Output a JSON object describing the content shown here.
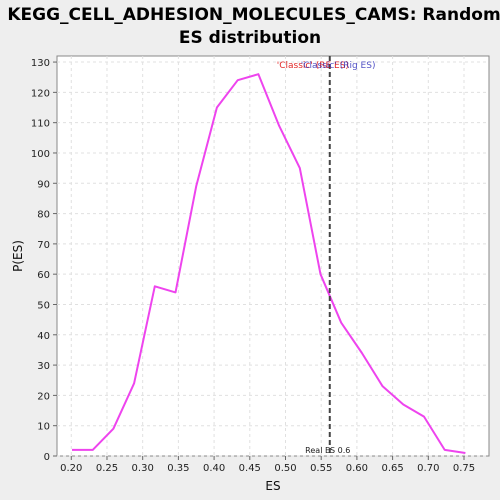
{
  "chart_data": {
    "type": "line",
    "title_line1": "KEGG_CELL_ADHESION_MOLECULES_CAMS: Random",
    "title_line2": "ES distribution",
    "xlabel": "ES",
    "ylabel": "P(ES)",
    "xlim": [
      0.18,
      0.785
    ],
    "ylim": [
      0,
      132
    ],
    "x_ticks": [
      0.2,
      0.25,
      0.3,
      0.35,
      0.4,
      0.45,
      0.5,
      0.55,
      0.6,
      0.65,
      0.7,
      0.75
    ],
    "x_tick_labels": [
      "0.20",
      "0.25",
      "0.30",
      "0.35",
      "0.40",
      "0.45",
      "0.50",
      "0.55",
      "0.60",
      "0.65",
      "0.70",
      "0.75"
    ],
    "y_ticks": [
      0,
      10,
      20,
      30,
      40,
      50,
      60,
      70,
      80,
      90,
      100,
      110,
      120,
      130
    ],
    "grid": true,
    "series": [
      {
        "color": "#ee44ee",
        "x": [
          0.201,
          0.23,
          0.259,
          0.288,
          0.317,
          0.346,
          0.375,
          0.404,
          0.433,
          0.462,
          0.491,
          0.52,
          0.549,
          0.578,
          0.607,
          0.636,
          0.665,
          0.694,
          0.723,
          0.752
        ],
        "y": [
          2,
          2,
          9,
          24,
          56,
          54,
          89,
          115,
          124,
          126,
          109,
          95,
          60,
          44,
          34,
          23,
          17,
          13,
          2,
          1
        ]
      }
    ],
    "reference_line": {
      "x": 0.562,
      "label": "Real ES 0.6",
      "color": "#444444"
    },
    "annotations": [
      {
        "text": "'Classic' (RE ES)",
        "color": "#dd0000"
      },
      {
        "text": "'Classic' (Rig ES)",
        "color": "#3333bb"
      }
    ]
  }
}
